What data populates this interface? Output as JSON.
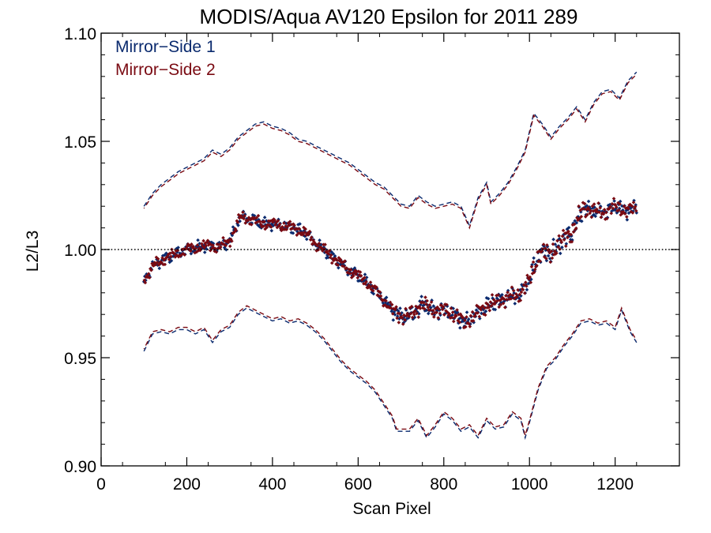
{
  "chart_data": {
    "type": "scatter",
    "title": "MODIS/Aqua AV120 Epsilon for 2011 289",
    "xlabel": "Scan Pixel",
    "ylabel": "L2/L3",
    "xlim": [
      0,
      1350
    ],
    "ylim": [
      0.9,
      1.1
    ],
    "x_ticks": [
      0,
      200,
      400,
      600,
      800,
      1000,
      1200
    ],
    "x_tick_labels": [
      "0",
      "200",
      "400",
      "600",
      "800",
      "1000",
      "1200"
    ],
    "y_ticks": [
      0.9,
      0.95,
      1.0,
      1.05,
      1.1
    ],
    "y_tick_labels": [
      "0.90",
      "0.95",
      "1.00",
      "1.05",
      "1.10"
    ],
    "reference_line": 1.0,
    "grid": false,
    "legend_position": "top-left",
    "mean_profile": [
      [
        100,
        0.986
      ],
      [
        125,
        0.993
      ],
      [
        150,
        0.996
      ],
      [
        175,
        0.998
      ],
      [
        200,
        1.0
      ],
      [
        225,
        1.001
      ],
      [
        250,
        1.002
      ],
      [
        275,
        1.001
      ],
      [
        300,
        1.004
      ],
      [
        325,
        1.015
      ],
      [
        350,
        1.014
      ],
      [
        375,
        1.012
      ],
      [
        400,
        1.012
      ],
      [
        425,
        1.011
      ],
      [
        450,
        1.01
      ],
      [
        475,
        1.008
      ],
      [
        500,
        1.003
      ],
      [
        525,
        0.999
      ],
      [
        550,
        0.995
      ],
      [
        575,
        0.991
      ],
      [
        600,
        0.988
      ],
      [
        625,
        0.984
      ],
      [
        650,
        0.979
      ],
      [
        675,
        0.973
      ],
      [
        700,
        0.969
      ],
      [
        725,
        0.97
      ],
      [
        750,
        0.975
      ],
      [
        775,
        0.972
      ],
      [
        800,
        0.972
      ],
      [
        825,
        0.97
      ],
      [
        850,
        0.966
      ],
      [
        875,
        0.97
      ],
      [
        900,
        0.974
      ],
      [
        925,
        0.976
      ],
      [
        950,
        0.978
      ],
      [
        975,
        0.979
      ],
      [
        1000,
        0.986
      ],
      [
        1025,
        0.999
      ],
      [
        1050,
        0.998
      ],
      [
        1075,
        1.004
      ],
      [
        1100,
        1.008
      ],
      [
        1125,
        1.019
      ],
      [
        1150,
        1.018
      ],
      [
        1175,
        1.017
      ],
      [
        1200,
        1.02
      ],
      [
        1225,
        1.018
      ],
      [
        1250,
        1.019
      ]
    ],
    "series": [
      {
        "name": "Mirror−Side 1",
        "color": "#0a2a6e",
        "style": "points and dashed lines",
        "upper": [
          [
            100,
            1.02
          ],
          [
            120,
            1.026
          ],
          [
            140,
            1.03
          ],
          [
            160,
            1.033
          ],
          [
            180,
            1.036
          ],
          [
            200,
            1.038
          ],
          [
            220,
            1.04
          ],
          [
            240,
            1.042
          ],
          [
            260,
            1.046
          ],
          [
            280,
            1.044
          ],
          [
            300,
            1.047
          ],
          [
            320,
            1.052
          ],
          [
            340,
            1.055
          ],
          [
            360,
            1.058
          ],
          [
            380,
            1.059
          ],
          [
            400,
            1.057
          ],
          [
            420,
            1.056
          ],
          [
            440,
            1.054
          ],
          [
            460,
            1.051
          ],
          [
            480,
            1.05
          ],
          [
            500,
            1.048
          ],
          [
            520,
            1.046
          ],
          [
            540,
            1.044
          ],
          [
            560,
            1.042
          ],
          [
            580,
            1.04
          ],
          [
            600,
            1.037
          ],
          [
            620,
            1.034
          ],
          [
            640,
            1.031
          ],
          [
            660,
            1.029
          ],
          [
            680,
            1.025
          ],
          [
            700,
            1.021
          ],
          [
            720,
            1.02
          ],
          [
            740,
            1.025
          ],
          [
            760,
            1.022
          ],
          [
            780,
            1.02
          ],
          [
            800,
            1.021
          ],
          [
            820,
            1.022
          ],
          [
            840,
            1.02
          ],
          [
            860,
            1.011
          ],
          [
            880,
            1.024
          ],
          [
            900,
            1.031
          ],
          [
            910,
            1.022
          ],
          [
            930,
            1.026
          ],
          [
            950,
            1.031
          ],
          [
            970,
            1.038
          ],
          [
            990,
            1.046
          ],
          [
            1010,
            1.063
          ],
          [
            1030,
            1.058
          ],
          [
            1050,
            1.052
          ],
          [
            1070,
            1.057
          ],
          [
            1090,
            1.061
          ],
          [
            1110,
            1.066
          ],
          [
            1130,
            1.06
          ],
          [
            1150,
            1.068
          ],
          [
            1170,
            1.073
          ],
          [
            1190,
            1.074
          ],
          [
            1210,
            1.07
          ],
          [
            1230,
            1.078
          ],
          [
            1250,
            1.082
          ]
        ],
        "lower": [
          [
            100,
            0.953
          ],
          [
            120,
            0.961
          ],
          [
            140,
            0.962
          ],
          [
            160,
            0.961
          ],
          [
            180,
            0.963
          ],
          [
            200,
            0.963
          ],
          [
            220,
            0.961
          ],
          [
            240,
            0.963
          ],
          [
            260,
            0.957
          ],
          [
            280,
            0.962
          ],
          [
            300,
            0.964
          ],
          [
            320,
            0.97
          ],
          [
            340,
            0.973
          ],
          [
            360,
            0.971
          ],
          [
            380,
            0.969
          ],
          [
            400,
            0.967
          ],
          [
            420,
            0.968
          ],
          [
            440,
            0.966
          ],
          [
            460,
            0.967
          ],
          [
            480,
            0.965
          ],
          [
            500,
            0.962
          ],
          [
            520,
            0.958
          ],
          [
            540,
            0.953
          ],
          [
            560,
            0.948
          ],
          [
            580,
            0.944
          ],
          [
            600,
            0.941
          ],
          [
            620,
            0.938
          ],
          [
            640,
            0.934
          ],
          [
            660,
            0.928
          ],
          [
            680,
            0.922
          ],
          [
            690,
            0.916
          ],
          [
            720,
            0.916
          ],
          [
            740,
            0.921
          ],
          [
            760,
            0.913
          ],
          [
            780,
            0.918
          ],
          [
            800,
            0.924
          ],
          [
            820,
            0.921
          ],
          [
            840,
            0.916
          ],
          [
            860,
            0.918
          ],
          [
            880,
            0.913
          ],
          [
            900,
            0.921
          ],
          [
            920,
            0.917
          ],
          [
            940,
            0.918
          ],
          [
            960,
            0.924
          ],
          [
            980,
            0.921
          ],
          [
            990,
            0.913
          ],
          [
            1000,
            0.92
          ],
          [
            1020,
            0.935
          ],
          [
            1040,
            0.945
          ],
          [
            1060,
            0.949
          ],
          [
            1080,
            0.955
          ],
          [
            1100,
            0.96
          ],
          [
            1120,
            0.966
          ],
          [
            1140,
            0.967
          ],
          [
            1160,
            0.965
          ],
          [
            1180,
            0.966
          ],
          [
            1200,
            0.963
          ],
          [
            1215,
            0.972
          ],
          [
            1235,
            0.962
          ],
          [
            1250,
            0.957
          ]
        ]
      },
      {
        "name": "Mirror−Side 2",
        "color": "#7a0a12",
        "style": "points and dashed lines",
        "upper_offset": -0.001,
        "lower_offset": 0.001
      }
    ]
  }
}
